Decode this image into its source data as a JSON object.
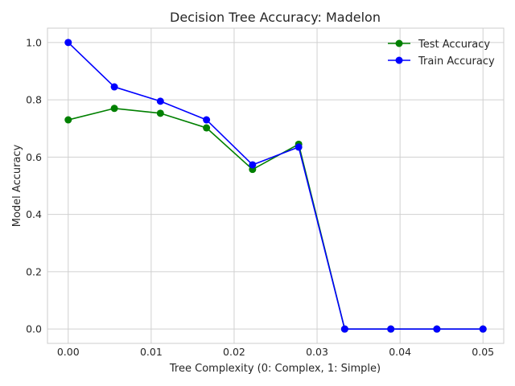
{
  "chart_data": {
    "type": "line",
    "title": "Decision Tree Accuracy: Madelon",
    "xlabel": "Tree Complexity (0: Complex, 1: Simple)",
    "ylabel": "Model Accuracy",
    "xlim": [
      -0.0025,
      0.0525
    ],
    "ylim": [
      -0.05,
      1.05
    ],
    "xticks": [
      0.0,
      0.01,
      0.02,
      0.03,
      0.04,
      0.05
    ],
    "xtick_labels": [
      "0.00",
      "0.01",
      "0.02",
      "0.03",
      "0.04",
      "0.05"
    ],
    "yticks": [
      0.0,
      0.2,
      0.4,
      0.6,
      0.8,
      1.0
    ],
    "ytick_labels": [
      "0.0",
      "0.2",
      "0.4",
      "0.6",
      "0.8",
      "1.0"
    ],
    "grid": true,
    "legend_position": "top-right",
    "x": [
      0.0,
      0.00556,
      0.01111,
      0.01667,
      0.02222,
      0.02778,
      0.03333,
      0.03889,
      0.04444,
      0.05
    ],
    "series": [
      {
        "name": "Test Accuracy",
        "color": "#008000",
        "marker": "circle",
        "values": [
          0.73,
          0.77,
          0.753,
          0.702,
          0.557,
          0.645,
          0.0,
          0.0,
          0.0,
          0.0
        ]
      },
      {
        "name": "Train Accuracy",
        "color": "#0000ff",
        "marker": "circle",
        "values": [
          1.0,
          0.845,
          0.795,
          0.73,
          0.573,
          0.635,
          0.0,
          0.0,
          0.0,
          0.0
        ]
      }
    ]
  }
}
